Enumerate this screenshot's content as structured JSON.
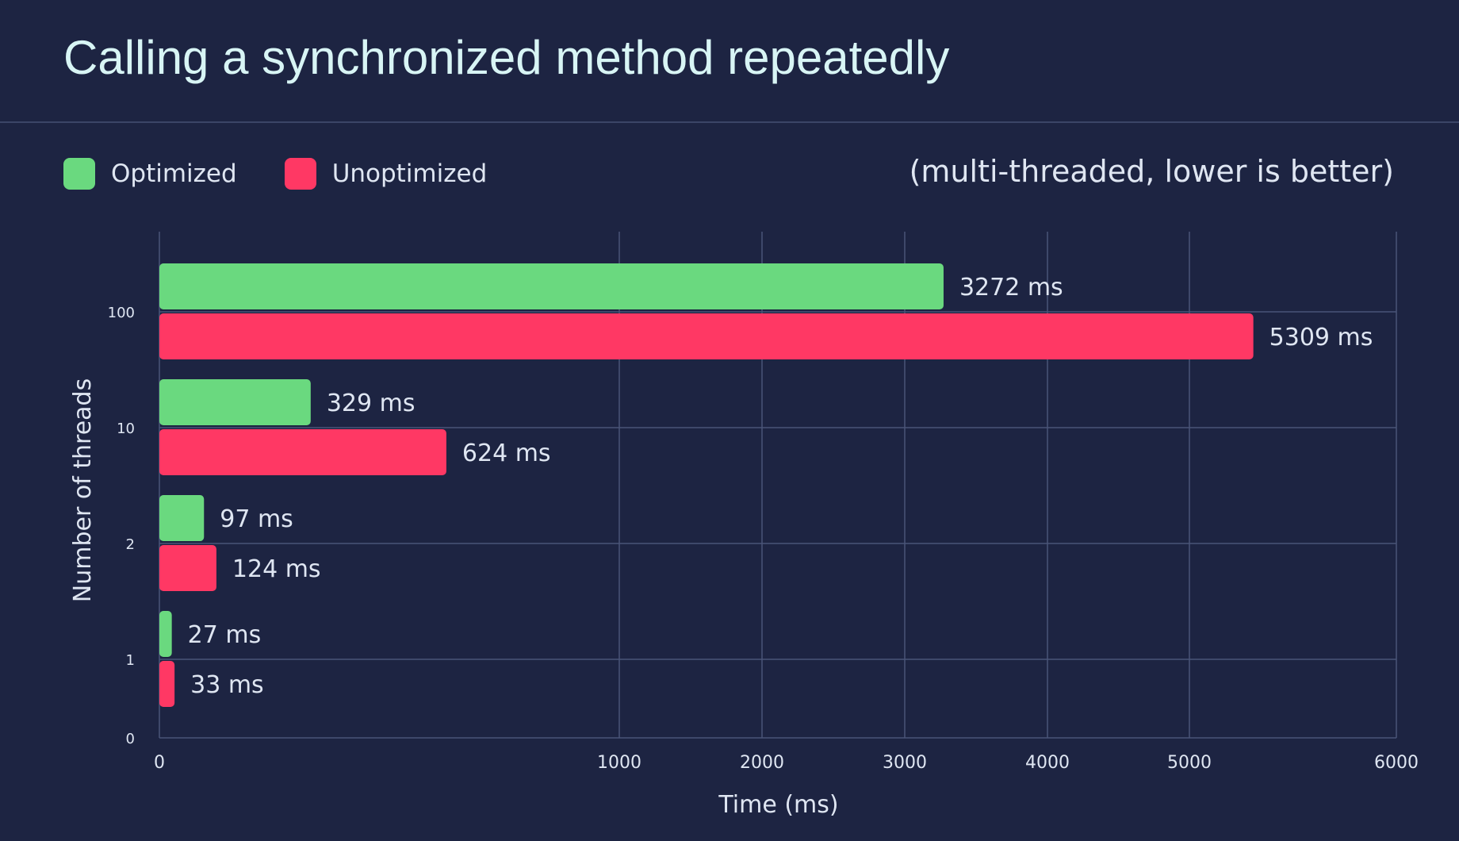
{
  "title": "Calling a synchronized method repeatedly",
  "note": "(multi-threaded, lower is better)",
  "colors": {
    "background": "#1d2442",
    "optimized": "#6ad97f",
    "unoptimized": "#ff3864",
    "grid": "#4a5478",
    "text": "#dfe6f2"
  },
  "chart_data": {
    "type": "bar",
    "orientation": "horizontal",
    "title": "Calling a synchronized method repeatedly",
    "xlabel": "Time (ms)",
    "ylabel": "Number of threads",
    "x_ticks": [
      "0",
      "1000",
      "2000",
      "3000",
      "4000",
      "5000",
      "6000"
    ],
    "y_ticks": [
      "100",
      "10",
      "2",
      "1",
      "0"
    ],
    "categories": [
      "100",
      "10",
      "2",
      "1"
    ],
    "series": [
      {
        "name": "Optimized",
        "values": [
          3272,
          329,
          97,
          27
        ],
        "labels": [
          "3272 ms",
          "329 ms",
          "97 ms",
          "27 ms"
        ]
      },
      {
        "name": "Unoptimized",
        "values": [
          5309,
          624,
          124,
          33
        ],
        "labels": [
          "5309 ms",
          "624 ms",
          "124 ms",
          "33 ms"
        ]
      }
    ],
    "grid": true,
    "legend_position": "top-left"
  }
}
